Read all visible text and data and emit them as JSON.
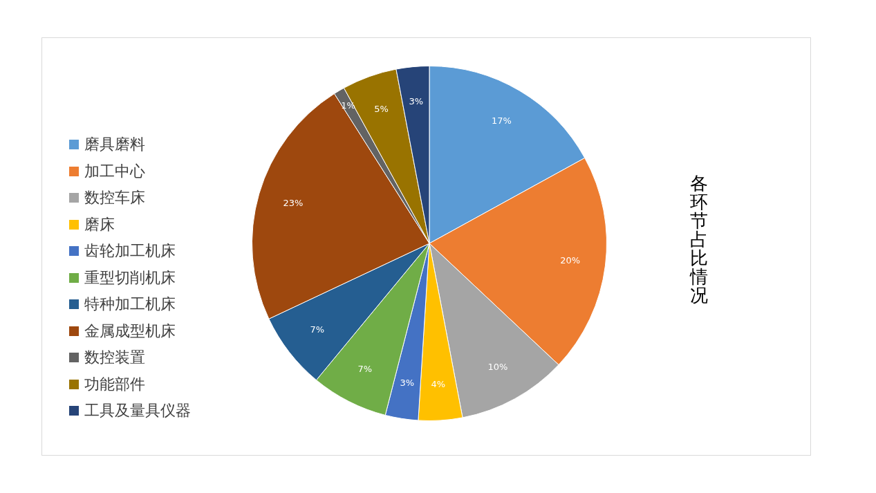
{
  "chart_data": {
    "type": "pie",
    "title": "各环节占比情况",
    "categories": [
      "磨具磨料",
      "加工中心",
      "数控车床",
      "磨床",
      "齿轮加工机床",
      "重型切削机床",
      "特种加工机床",
      "金属成型机床",
      "数控装置",
      "功能部件",
      "工具及量具仪器"
    ],
    "values": [
      17,
      20,
      10,
      4,
      3,
      7,
      7,
      23,
      1,
      5,
      3
    ],
    "value_labels": [
      "17%",
      "20%",
      "10%",
      "4%",
      "3%",
      "7%",
      "7%",
      "23%",
      "1%",
      "5%",
      "3%"
    ],
    "colors": [
      "#5b9bd5",
      "#ed7d31",
      "#a5a5a5",
      "#ffc000",
      "#4472c4",
      "#70ad47",
      "#255e91",
      "#9e480e",
      "#636363",
      "#997300",
      "#264478"
    ],
    "legend": "left"
  }
}
